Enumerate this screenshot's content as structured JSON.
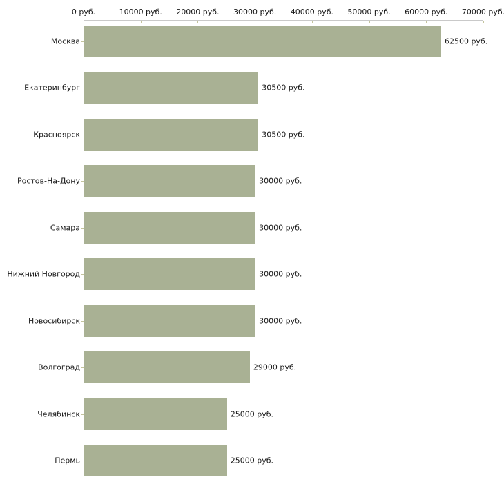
{
  "chart_data": {
    "type": "bar",
    "orientation": "horizontal",
    "title": "",
    "categories": [
      "Москва",
      "Екатеринбург",
      "Красноярск",
      "Ростов-На-Дону",
      "Самара",
      "Нижний Новгород",
      "Новосибирск",
      "Волгоград",
      "Челябинск",
      "Пермь"
    ],
    "values": [
      62500,
      30500,
      30500,
      30000,
      30000,
      30000,
      30000,
      29000,
      25000,
      25000
    ],
    "value_labels": [
      "62500 руб.",
      "30500 руб.",
      "30500 руб.",
      "30000 руб.",
      "30000 руб.",
      "30000 руб.",
      "30000 руб.",
      "29000 руб.",
      "25000 руб.",
      "25000 руб."
    ],
    "x_tick_values": [
      0,
      10000,
      20000,
      30000,
      40000,
      50000,
      60000,
      70000
    ],
    "x_tick_labels": [
      "0 руб.",
      "10000 руб.",
      "20000 руб.",
      "30000 руб.",
      "40000 руб.",
      "50000 руб.",
      "60000 руб.",
      "70000 руб."
    ],
    "xlim": [
      0,
      70000
    ],
    "unit_suffix": " руб.",
    "xlabel": "",
    "ylabel": "",
    "legend": "none",
    "grid": false,
    "colors": {
      "bar": "#a9b194",
      "axis_line": "#c9c9c9",
      "tick_mark": "#c3c39c",
      "text": "#1a1a1a",
      "background": "#ffffff"
    }
  }
}
